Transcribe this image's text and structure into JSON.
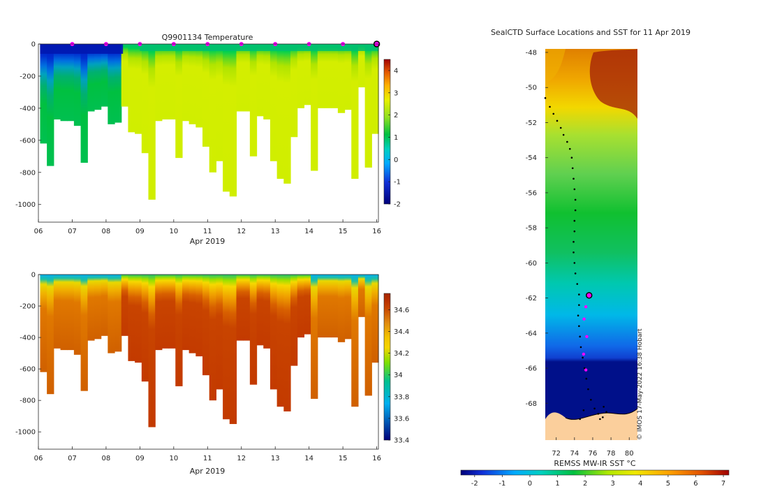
{
  "chart_data": [
    {
      "type": "heatmap",
      "title": "Q9901134  Temperature",
      "xlabel": "Apr 2019",
      "x_ticks": [
        "06",
        "07",
        "08",
        "09",
        "10",
        "11",
        "12",
        "13",
        "14",
        "15",
        "16"
      ],
      "x_range": [
        6,
        16.05
      ],
      "y_ticks": [
        0,
        -200,
        -400,
        -600,
        -800,
        -1000
      ],
      "y_range": [
        -1110,
        0
      ],
      "colorbar_ticks": [
        "-2",
        "-1",
        "0",
        "1",
        "2",
        "3",
        "4"
      ],
      "colorbar_range": [
        -2,
        4.5
      ],
      "surface_markers_x": [
        7,
        8,
        9,
        10,
        11,
        12,
        13,
        14,
        15
      ],
      "current_marker_x": 16,
      "profiles": {
        "time": [
          6.15,
          6.35,
          6.55,
          6.75,
          6.95,
          7.15,
          7.35,
          7.55,
          7.75,
          7.95,
          8.15,
          8.35,
          8.55,
          8.75,
          8.95,
          9.15,
          9.35,
          9.55,
          9.75,
          9.95,
          10.15,
          10.35,
          10.55,
          10.75,
          10.95,
          11.15,
          11.35,
          11.55,
          11.75,
          11.95,
          12.15,
          12.35,
          12.55,
          12.75,
          12.95,
          13.15,
          13.35,
          13.55,
          13.75,
          13.95,
          14.15,
          14.35,
          14.55,
          14.75,
          14.95,
          15.15,
          15.35,
          15.55,
          15.75,
          15.95
        ],
        "max_depth_m": [
          620,
          760,
          470,
          480,
          480,
          510,
          740,
          420,
          410,
          390,
          500,
          490,
          390,
          550,
          560,
          680,
          970,
          480,
          470,
          470,
          710,
          480,
          500,
          520,
          640,
          800,
          730,
          920,
          950,
          420,
          420,
          700,
          450,
          470,
          730,
          840,
          870,
          580,
          400,
          380,
          790,
          400,
          400,
          400,
          430,
          410,
          840,
          270,
          770,
          560
        ]
      }
    },
    {
      "type": "heatmap",
      "title": "",
      "xlabel": "Apr 2019",
      "x_ticks": [
        "06",
        "07",
        "08",
        "09",
        "10",
        "11",
        "12",
        "13",
        "14",
        "15",
        "16"
      ],
      "x_range": [
        6,
        16.05
      ],
      "y_ticks": [
        0,
        -200,
        -400,
        -600,
        -800,
        -1000
      ],
      "y_range": [
        -1110,
        0
      ],
      "colorbar_ticks": [
        "33.4",
        "33.6",
        "33.8",
        "34",
        "34.2",
        "34.4",
        "34.6"
      ],
      "colorbar_range": [
        33.4,
        34.75
      ]
    },
    {
      "type": "heatmap",
      "title": "SealCTD Surface Locations and SST for 11 Apr 2019",
      "xlabel": "REMSS MW-IR SST °C",
      "x_ticks": [
        "72",
        "74",
        "76",
        "78",
        "80"
      ],
      "x_range": [
        70.8,
        80.9
      ],
      "y_ticks": [
        "-48",
        "-50",
        "-52",
        "-54",
        "-56",
        "-58",
        "-60",
        "-62",
        "-64",
        "-66",
        "-68"
      ],
      "y_range": [
        -70.1,
        -47.8
      ],
      "colorbar_ticks": [
        "-2",
        "-1",
        "0",
        "1",
        "2",
        "3",
        "4",
        "5",
        "6",
        "7"
      ],
      "colorbar_range": [
        -2.5,
        7.2
      ],
      "current_position": {
        "lon": 75.6,
        "lat": -61.85
      },
      "recent_positions": [
        {
          "lon": 75.25,
          "lat": -62.5
        },
        {
          "lon": 75.05,
          "lat": -63.2
        },
        {
          "lon": 75.35,
          "lat": -64.2
        },
        {
          "lon": 75.0,
          "lat": -65.2
        },
        {
          "lon": 75.25,
          "lat": -66.1
        }
      ],
      "track": [
        {
          "lon": 70.8,
          "lat": -50.6
        },
        {
          "lon": 71.3,
          "lat": -51.1
        },
        {
          "lon": 71.7,
          "lat": -51.5
        },
        {
          "lon": 72.1,
          "lat": -51.9
        },
        {
          "lon": 72.5,
          "lat": -52.3
        },
        {
          "lon": 72.8,
          "lat": -52.7
        },
        {
          "lon": 73.2,
          "lat": -53.1
        },
        {
          "lon": 73.5,
          "lat": -53.5
        },
        {
          "lon": 73.7,
          "lat": -54.0
        },
        {
          "lon": 73.8,
          "lat": -54.6
        },
        {
          "lon": 73.9,
          "lat": -55.2
        },
        {
          "lon": 74.0,
          "lat": -55.8
        },
        {
          "lon": 74.1,
          "lat": -56.4
        },
        {
          "lon": 74.1,
          "lat": -57.0
        },
        {
          "lon": 74.0,
          "lat": -57.6
        },
        {
          "lon": 74.0,
          "lat": -58.2
        },
        {
          "lon": 73.9,
          "lat": -58.8
        },
        {
          "lon": 73.9,
          "lat": -59.4
        },
        {
          "lon": 74.0,
          "lat": -60.0
        },
        {
          "lon": 74.1,
          "lat": -60.6
        },
        {
          "lon": 74.3,
          "lat": -61.2
        },
        {
          "lon": 74.5,
          "lat": -61.8
        },
        {
          "lon": 74.5,
          "lat": -62.4
        },
        {
          "lon": 74.4,
          "lat": -63.0
        },
        {
          "lon": 74.5,
          "lat": -63.6
        },
        {
          "lon": 74.6,
          "lat": -64.2
        },
        {
          "lon": 74.7,
          "lat": -64.8
        },
        {
          "lon": 74.9,
          "lat": -65.4
        },
        {
          "lon": 75.1,
          "lat": -66.0
        },
        {
          "lon": 75.3,
          "lat": -66.6
        },
        {
          "lon": 75.5,
          "lat": -67.2
        },
        {
          "lon": 75.8,
          "lat": -67.8
        },
        {
          "lon": 76.2,
          "lat": -68.3
        },
        {
          "lon": 76.6,
          "lat": -68.6
        },
        {
          "lon": 77.1,
          "lat": -68.8
        },
        {
          "lon": 77.5,
          "lat": -68.5
        },
        {
          "lon": 77.2,
          "lat": -68.2
        },
        {
          "lon": 76.8,
          "lat": -68.9
        },
        {
          "lon": 75.0,
          "lat": -68.4
        },
        {
          "lon": 74.6,
          "lat": -68.9
        }
      ],
      "watermark": "© IMOS 17-May-2022 16:38 Hobart"
    }
  ]
}
